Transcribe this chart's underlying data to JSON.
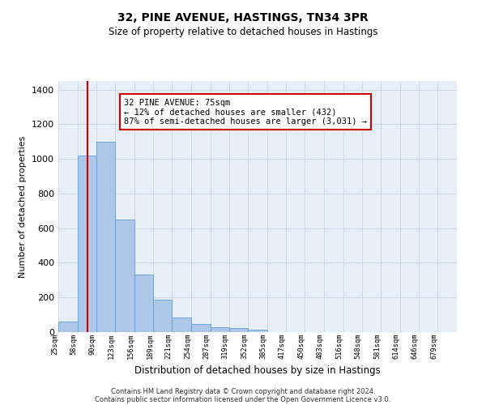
{
  "title": "32, PINE AVENUE, HASTINGS, TN34 3PR",
  "subtitle": "Size of property relative to detached houses in Hastings",
  "xlabel": "Distribution of detached houses by size in Hastings",
  "ylabel": "Number of detached properties",
  "bin_labels": [
    "25sqm",
    "58sqm",
    "90sqm",
    "123sqm",
    "156sqm",
    "189sqm",
    "221sqm",
    "254sqm",
    "287sqm",
    "319sqm",
    "352sqm",
    "385sqm",
    "417sqm",
    "450sqm",
    "483sqm",
    "516sqm",
    "548sqm",
    "581sqm",
    "614sqm",
    "646sqm",
    "679sqm"
  ],
  "bin_edges": [
    25,
    58,
    90,
    123,
    156,
    189,
    221,
    254,
    287,
    319,
    352,
    385,
    417,
    450,
    483,
    516,
    548,
    581,
    614,
    646,
    679,
    712
  ],
  "bar_heights": [
    60,
    1020,
    1100,
    650,
    330,
    185,
    85,
    45,
    28,
    22,
    15,
    0,
    0,
    0,
    0,
    0,
    0,
    0,
    0,
    0,
    0
  ],
  "bar_color": "#aec6e8",
  "bar_edge_color": "#5a9fd4",
  "property_size": 75,
  "vline_color": "#cc0000",
  "annotation_line1": "32 PINE AVENUE: 75sqm",
  "annotation_line2": "← 12% of detached houses are smaller (432)",
  "annotation_line3": "87% of semi-detached houses are larger (3,031) →",
  "annotation_box_color": "#ffffff",
  "annotation_border_color": "#cc0000",
  "ylim": [
    0,
    1450
  ],
  "yticks": [
    0,
    200,
    400,
    600,
    800,
    1000,
    1200,
    1400
  ],
  "grid_color": "#d0d8e8",
  "bg_color": "#e8eef5",
  "footer1": "Contains HM Land Registry data © Crown copyright and database right 2024.",
  "footer2": "Contains public sector information licensed under the Open Government Licence v3.0."
}
